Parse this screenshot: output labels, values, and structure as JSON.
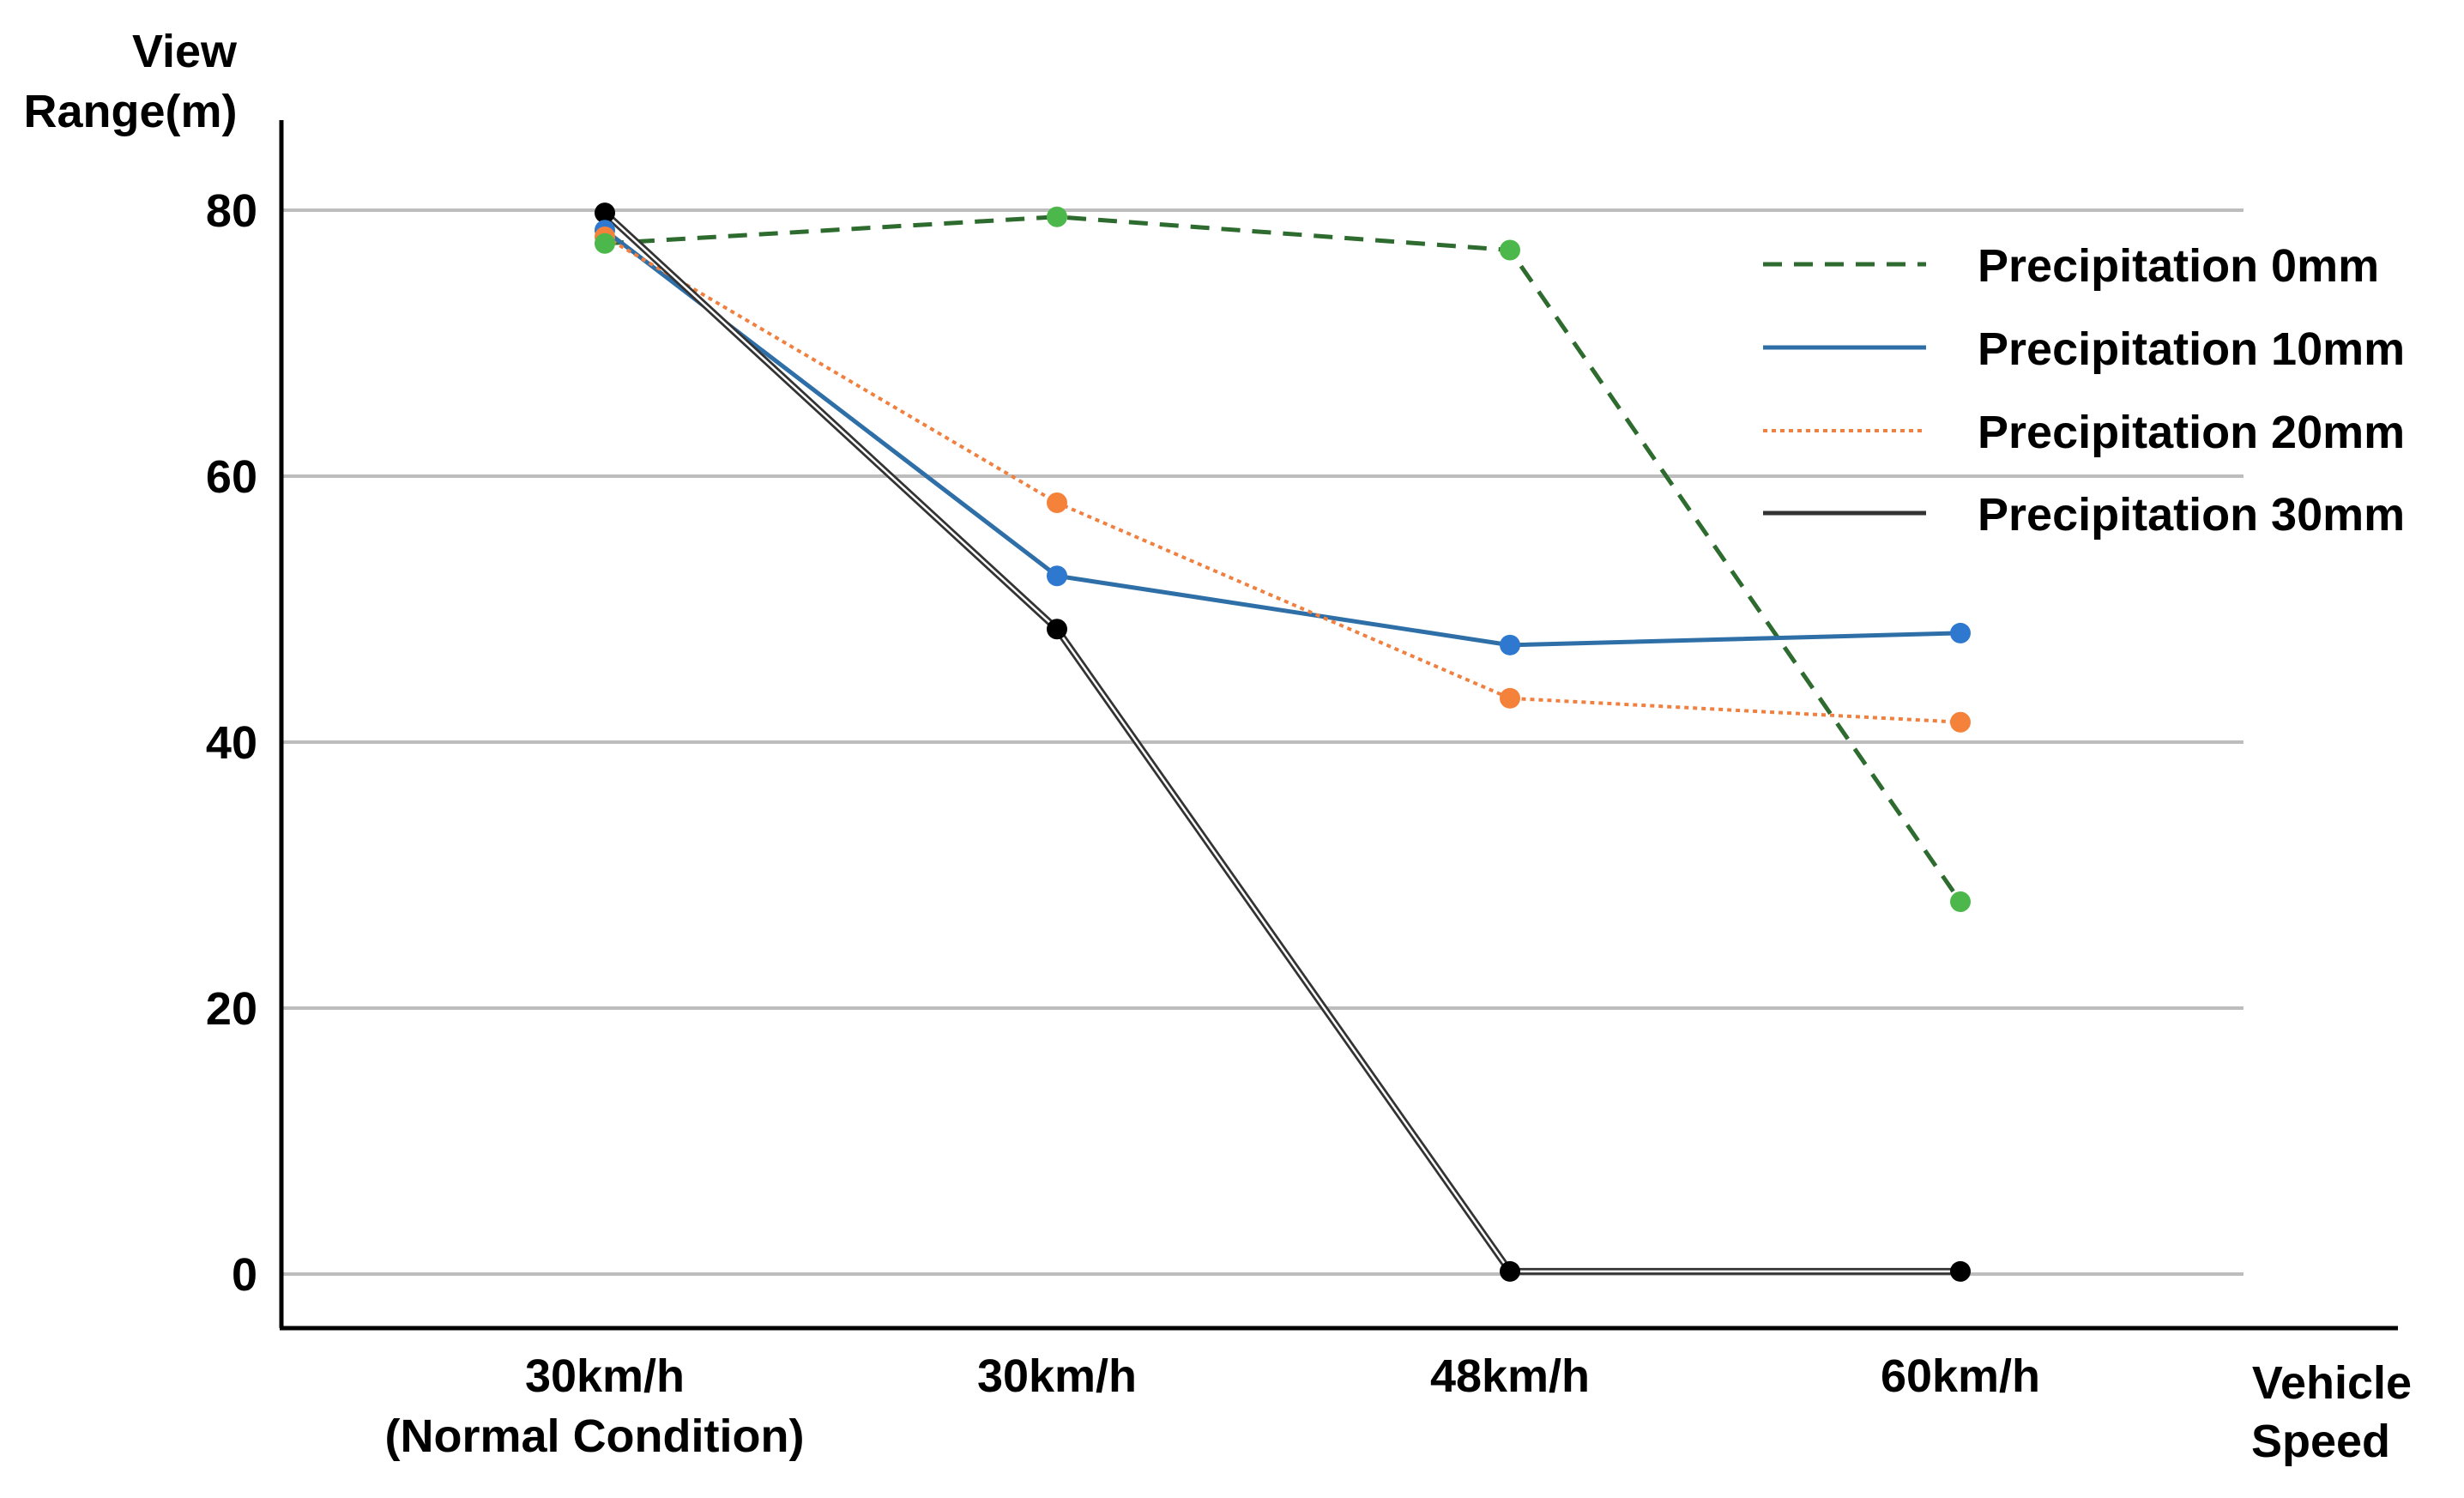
{
  "chart_data": {
    "type": "line",
    "title": "",
    "ylabel_lines": [
      "View",
      "Range(m)"
    ],
    "xlabel_lines": [
      "Vehicle",
      "Speed"
    ],
    "categories": [
      {
        "line1": "30km/h",
        "line2": "(Normal Condition)"
      },
      {
        "line1": "30km/h",
        "line2": ""
      },
      {
        "line1": "48km/h",
        "line2": ""
      },
      {
        "line1": "60km/h",
        "line2": ""
      }
    ],
    "yticks": [
      0,
      20,
      40,
      60,
      80
    ],
    "ylim": [
      -4.2,
      90
    ],
    "grid": true,
    "legend_position": "top-right",
    "series": [
      {
        "name": "Precipitation 0mm",
        "style": "dashed",
        "line_color": "#2E6B2E",
        "marker_color": "#4CB84C",
        "values": [
          77.5,
          79.5,
          77,
          28
        ]
      },
      {
        "name": "Precipitation 10mm",
        "style": "solid",
        "line_color": "#2F6FA8",
        "marker_color": "#2E78D0",
        "values": [
          78.5,
          52.5,
          47.3,
          48.2
        ]
      },
      {
        "name": "Precipitation 20mm",
        "style": "dotted",
        "line_color": "#F08040",
        "marker_color": "#F5823A",
        "values": [
          78,
          58,
          43.3,
          41.5
        ]
      },
      {
        "name": "Precipitation 30mm",
        "style": "double",
        "line_color": "#333333",
        "marker_color": "#000000",
        "values": [
          79.8,
          48.5,
          0.2,
          0.2
        ]
      }
    ]
  }
}
